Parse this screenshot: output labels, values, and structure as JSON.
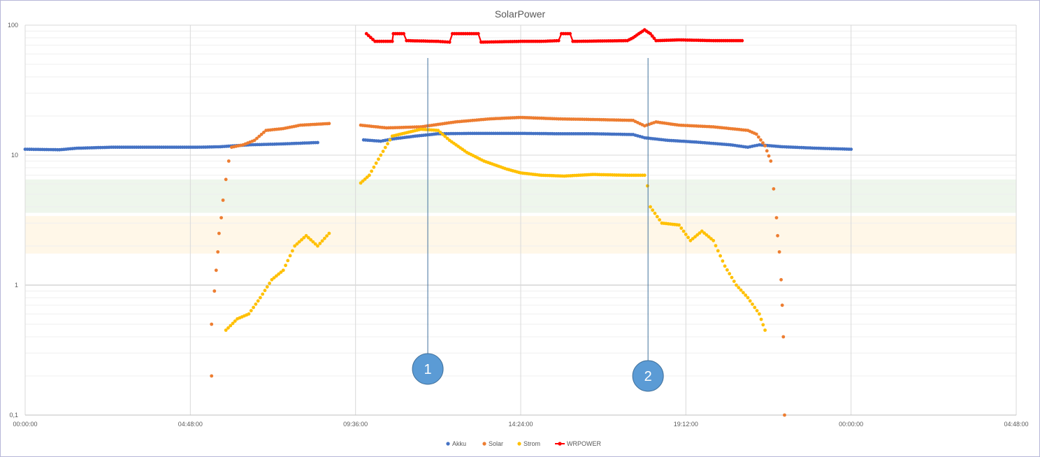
{
  "chart_data": {
    "type": "scatter",
    "title": "SolarPower",
    "xlabel": "",
    "ylabel": "",
    "y_scale": "log",
    "ylim": [
      0.1,
      100
    ],
    "xlim": [
      "00:00:00",
      "04:48:00 (+1 day)"
    ],
    "grid": true,
    "legend_position": "bottom",
    "x_tick_labels": [
      "00:00:00",
      "04:48:00",
      "09:36:00",
      "14:24:00",
      "19:12:00",
      "00:00:00",
      "04:48:00"
    ],
    "y_tick_labels": [
      "0,1",
      "1",
      "10",
      "100"
    ],
    "bands": [
      {
        "from": 3.6,
        "to": 6.5,
        "color": "#eef6ec"
      },
      {
        "from": 1.75,
        "to": 3.4,
        "color": "#fff7e8"
      }
    ],
    "annotations": [
      {
        "label": "1",
        "x": "11:42:00",
        "color": "#5b9bd5"
      },
      {
        "label": "2",
        "x": "18:06:00",
        "color": "#5b9bd5"
      }
    ],
    "series": [
      {
        "name": "Akku",
        "color": "#4472c4",
        "style": "markers",
        "segments": [
          [
            [
              "00:00",
              11.1
            ],
            [
              "01:00",
              11.0
            ],
            [
              "01:30",
              11.3
            ],
            [
              "02:30",
              11.5
            ],
            [
              "05:00",
              11.5
            ],
            [
              "05:40",
              11.6
            ],
            [
              "06:30",
              12.0
            ],
            [
              "07:30",
              12.2
            ],
            [
              "08:30",
              12.5
            ]
          ],
          [
            [
              "09:50",
              13.1
            ],
            [
              "10:20",
              12.8
            ],
            [
              "10:40",
              13.3
            ],
            [
              "11:20",
              14.0
            ],
            [
              "12:00",
              14.6
            ],
            [
              "13:00",
              14.7
            ],
            [
              "14:24",
              14.7
            ],
            [
              "15:30",
              14.6
            ],
            [
              "16:30",
              14.6
            ],
            [
              "17:40",
              14.4
            ],
            [
              "18:00",
              13.6
            ],
            [
              "18:40",
              13.0
            ],
            [
              "19:30",
              12.6
            ],
            [
              "20:30",
              12.0
            ],
            [
              "21:00",
              11.5
            ],
            [
              "21:20",
              12.0
            ],
            [
              "22:00",
              11.6
            ],
            [
              "23:00",
              11.3
            ],
            [
              "24:00",
              11.1
            ]
          ]
        ]
      },
      {
        "name": "Solar",
        "color": "#ed7d31",
        "style": "markers",
        "segments": [
          [
            [
              "05:25",
              0.2
            ],
            [
              "05:25",
              0.5
            ],
            [
              "05:30",
              0.9
            ],
            [
              "05:33",
              1.3
            ],
            [
              "05:36",
              1.8
            ],
            [
              "05:38",
              2.5
            ],
            [
              "05:42",
              3.3
            ],
            [
              "05:45",
              4.5
            ],
            [
              "05:50",
              6.5
            ],
            [
              "05:55",
              9.0
            ],
            [
              "06:00",
              11.5
            ],
            [
              "06:20",
              12.0
            ],
            [
              "06:40",
              13.0
            ],
            [
              "07:00",
              15.5
            ],
            [
              "07:30",
              16.0
            ],
            [
              "08:00",
              17.0
            ],
            [
              "08:50",
              17.5
            ]
          ],
          [
            [
              "09:45",
              17.0
            ],
            [
              "10:30",
              16.2
            ],
            [
              "11:30",
              16.5
            ],
            [
              "12:30",
              18.0
            ],
            [
              "13:30",
              19.0
            ],
            [
              "14:24",
              19.5
            ],
            [
              "15:30",
              19.0
            ],
            [
              "16:30",
              18.8
            ],
            [
              "17:40",
              18.5
            ],
            [
              "18:00",
              16.8
            ],
            [
              "18:20",
              18.0
            ],
            [
              "19:00",
              17.0
            ],
            [
              "20:00",
              16.5
            ],
            [
              "21:00",
              15.5
            ],
            [
              "21:15",
              14.5
            ],
            [
              "21:30",
              11.8
            ],
            [
              "21:40",
              9.0
            ],
            [
              "21:45",
              5.5
            ],
            [
              "21:50",
              3.3
            ],
            [
              "21:52",
              2.4
            ],
            [
              "21:55",
              1.8
            ],
            [
              "21:58",
              1.1
            ],
            [
              "22:00",
              0.7
            ],
            [
              "22:02",
              0.4
            ],
            [
              "22:04",
              0.1
            ]
          ]
        ]
      },
      {
        "name": "Strom",
        "color": "#ffc000",
        "style": "markers",
        "segments": [
          [
            [
              "05:50",
              0.45
            ],
            [
              "06:10",
              0.55
            ],
            [
              "06:30",
              0.6
            ],
            [
              "06:50",
              0.8
            ],
            [
              "07:10",
              1.1
            ],
            [
              "07:30",
              1.3
            ],
            [
              "07:50",
              2.0
            ],
            [
              "08:10",
              2.4
            ],
            [
              "08:30",
              2.0
            ],
            [
              "08:50",
              2.5
            ]
          ],
          [
            [
              "09:45",
              6.1
            ],
            [
              "10:00",
              7.0
            ],
            [
              "10:20",
              10.0
            ],
            [
              "10:40",
              14.0
            ],
            [
              "11:30",
              15.8
            ],
            [
              "12:00",
              15.5
            ],
            [
              "12:20",
              13.0
            ],
            [
              "12:50",
              10.5
            ],
            [
              "13:20",
              9.0
            ],
            [
              "14:00",
              7.8
            ],
            [
              "14:24",
              7.3
            ],
            [
              "15:00",
              7.0
            ],
            [
              "15:40",
              6.9
            ],
            [
              "16:30",
              7.1
            ],
            [
              "17:30",
              7.0
            ],
            [
              "18:00",
              7.0
            ],
            [
              "18:05",
              5.8
            ],
            [
              "18:10",
              4.0
            ],
            [
              "18:30",
              3.0
            ],
            [
              "19:00",
              2.9
            ],
            [
              "19:20",
              2.2
            ],
            [
              "19:40",
              2.6
            ],
            [
              "20:00",
              2.2
            ],
            [
              "20:20",
              1.4
            ],
            [
              "20:40",
              1.0
            ],
            [
              "21:00",
              0.8
            ],
            [
              "21:20",
              0.6
            ],
            [
              "21:30",
              0.45
            ]
          ]
        ]
      },
      {
        "name": "WRPOWER",
        "color": "#ff0000",
        "style": "line-markers",
        "segments": [
          [
            [
              "09:55",
              86
            ],
            [
              "10:10",
              75
            ],
            [
              "10:40",
              75
            ],
            [
              "10:42",
              86
            ],
            [
              "11:00",
              86
            ],
            [
              "11:05",
              76
            ],
            [
              "12:00",
              75
            ],
            [
              "12:20",
              74
            ],
            [
              "12:25",
              86
            ],
            [
              "13:10",
              86
            ],
            [
              "13:15",
              74
            ],
            [
              "14:24",
              75
            ],
            [
              "15:00",
              75
            ],
            [
              "15:30",
              76
            ],
            [
              "15:35",
              86
            ],
            [
              "15:50",
              86
            ],
            [
              "15:55",
              75
            ],
            [
              "17:30",
              76
            ],
            [
              "17:40",
              80
            ],
            [
              "17:50",
              86
            ],
            [
              "18:00",
              92
            ],
            [
              "18:10",
              86
            ],
            [
              "18:20",
              76
            ],
            [
              "19:00",
              77
            ],
            [
              "20:00",
              76
            ],
            [
              "20:50",
              76
            ]
          ]
        ]
      }
    ]
  }
}
